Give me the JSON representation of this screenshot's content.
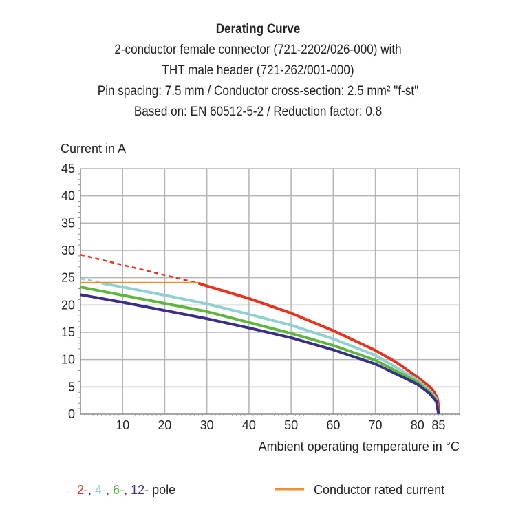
{
  "chart_data": {
    "type": "line",
    "title": "Derating Curve",
    "subtitle": [
      "2-conductor female connector (721-2202/026-000) with",
      "THT male header (721-262/001-000)",
      "Pin spacing: 7.5 mm / Conductor cross-section: 2.5 mm² \"f-st\"",
      "Based on: EN 60512-5-2 / Reduction factor: 0.8"
    ],
    "ylabel": "Current in A",
    "xlabel": "Ambient operating temperature in °C",
    "xlim": [
      0,
      90
    ],
    "ylim": [
      0,
      45
    ],
    "xticks": [
      "10",
      "20",
      "30",
      "40",
      "50",
      "60",
      "70",
      "80",
      "85"
    ],
    "xtick_values": [
      10,
      20,
      30,
      40,
      50,
      60,
      70,
      80,
      85
    ],
    "yticks": [
      "0",
      "5",
      "10",
      "15",
      "20",
      "25",
      "30",
      "35",
      "40",
      "45"
    ],
    "grid": true,
    "legend": {
      "poles_prefix": [
        {
          "text": "2-",
          "color": "#e8321e"
        },
        {
          "text": "4-",
          "color": "#8fd0d3"
        },
        {
          "text": "6-",
          "color": "#5cb83c"
        },
        {
          "text": "12-",
          "color": "#3a2e8c"
        }
      ],
      "poles_suffix": "pole",
      "rated_label": "Conductor rated current",
      "rated_color": "#f28c28"
    },
    "series": [
      {
        "color": "#e8321e",
        "dashed_x": [
          0,
          28
        ],
        "dashed_y": [
          29.2,
          24.0
        ],
        "x": [
          28,
          30,
          40,
          50,
          60,
          70,
          75,
          80,
          83,
          84,
          84.7,
          85,
          85
        ],
        "y": [
          24.0,
          23.5,
          21.2,
          18.5,
          15.3,
          11.7,
          9.5,
          6.8,
          5.0,
          4.0,
          3.0,
          1.5,
          0
        ]
      },
      {
        "color": "#8fd0d3",
        "dashed_x": [
          0,
          5
        ],
        "dashed_y": [
          24.8,
          24.2
        ],
        "x": [
          5,
          10,
          20,
          30,
          40,
          50,
          60,
          70,
          80,
          83,
          84.5,
          85
        ],
        "y": [
          24.0,
          23.3,
          21.8,
          20.2,
          18.3,
          16.3,
          13.8,
          10.8,
          6.3,
          4.3,
          2.8,
          0
        ]
      },
      {
        "color": "#5cb83c",
        "x": [
          0,
          10,
          20,
          30,
          40,
          50,
          60,
          70,
          80,
          83,
          84.5,
          85
        ],
        "y": [
          23.3,
          21.8,
          20.3,
          18.8,
          16.8,
          14.8,
          12.6,
          9.9,
          5.9,
          4.0,
          2.5,
          0
        ]
      },
      {
        "color": "#3a2e8c",
        "x": [
          0,
          10,
          20,
          30,
          40,
          50,
          60,
          70,
          80,
          83,
          84.5,
          85
        ],
        "y": [
          21.9,
          20.5,
          19.0,
          17.5,
          15.8,
          14.0,
          11.8,
          9.2,
          5.5,
          3.7,
          2.3,
          0
        ]
      },
      {
        "color": "#f28c28",
        "name": "Conductor rated current",
        "x": [
          0,
          28
        ],
        "y": [
          24.1,
          24.1
        ]
      }
    ]
  }
}
